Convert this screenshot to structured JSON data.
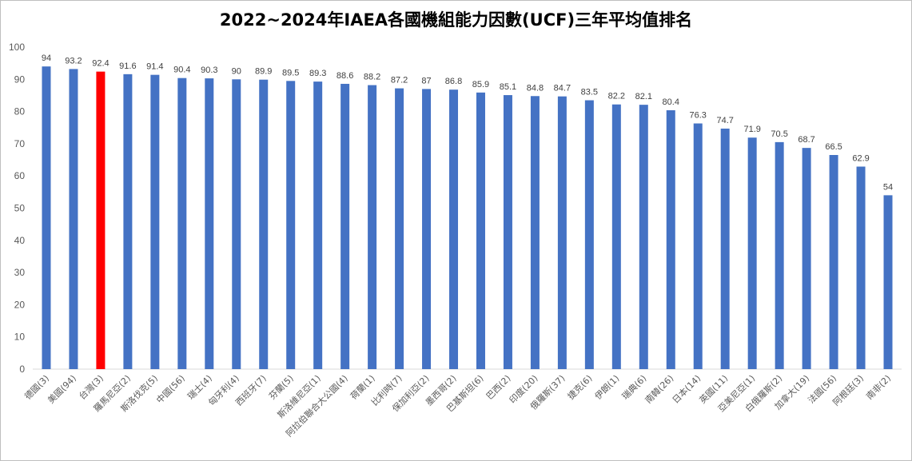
{
  "chart_data": {
    "type": "bar",
    "title": "2022~2024年IAEA各國機組能力因數(UCF)三年平均值排名",
    "categories": [
      "德國(3)",
      "美國(94)",
      "台灣(3)",
      "羅馬尼亞(2)",
      "斯洛伐克(5)",
      "中國(56)",
      "瑞士(4)",
      "匈牙利(4)",
      "西班牙(7)",
      "芬蘭(5)",
      "斯洛維尼亞(1)",
      "阿拉伯聯合大公國(4)",
      "荷蘭(1)",
      "比利時(7)",
      "保加利亞(2)",
      "墨西哥(2)",
      "巴基斯坦(6)",
      "巴西(2)",
      "印度(20)",
      "俄羅斯(37)",
      "捷克(6)",
      "伊朗(1)",
      "瑞典(6)",
      "南韓(26)",
      "日本(14)",
      "英國(11)",
      "亞美尼亞(1)",
      "白俄羅斯(2)",
      "加拿大(19)",
      "法國(56)",
      "阿根廷(3)",
      "南非(2)"
    ],
    "values": [
      94,
      93.2,
      92.4,
      91.6,
      91.4,
      90.4,
      90.3,
      90,
      89.9,
      89.5,
      89.3,
      88.6,
      88.2,
      87.2,
      87,
      86.8,
      85.9,
      85.1,
      84.8,
      84.7,
      83.5,
      82.2,
      82.1,
      80.4,
      76.3,
      74.7,
      71.9,
      70.5,
      68.7,
      66.5,
      62.9,
      54
    ],
    "value_labels": [
      "94",
      "93.2",
      "92.4",
      "91.6",
      "91.4",
      "90.4",
      "90.3",
      "90",
      "89.9",
      "89.5",
      "89.3",
      "88.6",
      "88.2",
      "87.2",
      "87",
      "86.8",
      "85.9",
      "85.1",
      "84.8",
      "84.7",
      "83.5",
      "82.2",
      "82.1",
      "80.4",
      "76.3",
      "74.7",
      "71.9",
      "70.5",
      "68.7",
      "66.5",
      "62.9",
      "54"
    ],
    "highlight_index": 2,
    "bar_color": "#4472C4",
    "highlight_color": "#FF0000",
    "ylim": [
      0,
      100
    ],
    "yticks": [
      0,
      10,
      20,
      30,
      40,
      50,
      60,
      70,
      80,
      90,
      100
    ],
    "ytick_labels": [
      "0",
      "10",
      "20",
      "30",
      "40",
      "50",
      "60",
      "70",
      "80",
      "90",
      "100"
    ],
    "grid": false,
    "legend": "none",
    "xlabel": "",
    "ylabel": ""
  }
}
